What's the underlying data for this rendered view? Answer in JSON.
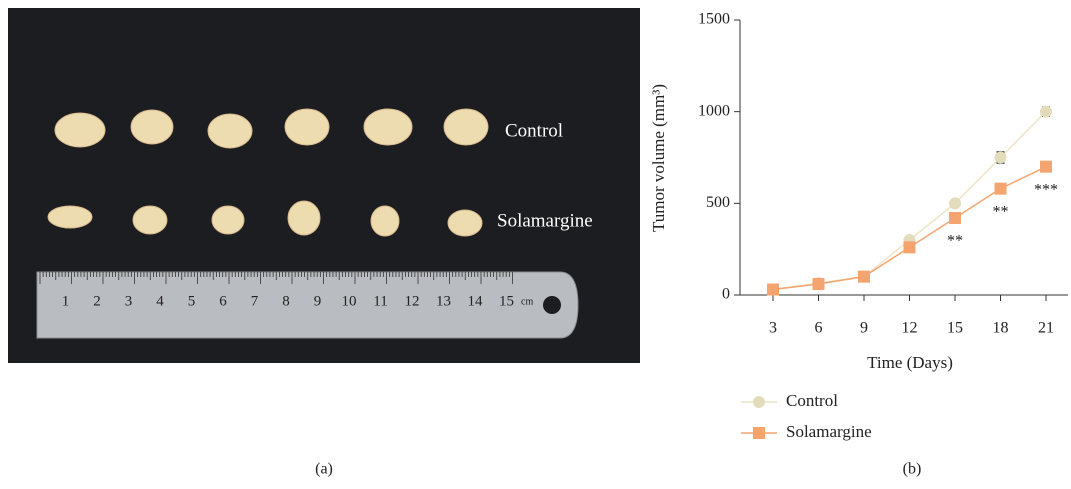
{
  "photo": {
    "labels": [
      "Control",
      "Solamargine"
    ],
    "ruler": {
      "labels": [
        "1",
        "2",
        "3",
        "4",
        "5",
        "6",
        "7",
        "8",
        "9",
        "10",
        "11",
        "12",
        "13",
        "14",
        "15"
      ],
      "unit": "cm"
    },
    "caption": "(a)"
  },
  "chart_data": {
    "type": "line",
    "caption": "(b)",
    "x_label": "Time (Days)",
    "y_label": "Tumor volume (mm³)",
    "categories": [
      "3",
      "6",
      "9",
      "12",
      "15",
      "18",
      "21"
    ],
    "ylim": [
      0,
      1500
    ],
    "yticks": [
      0,
      500,
      1000,
      1500
    ],
    "grid": false,
    "series": [
      {
        "name": "Control",
        "color": "#e3dcbc",
        "line_color": "#ece5c6",
        "marker": "circle",
        "values": [
          30,
          65,
          100,
          300,
          500,
          750,
          1000
        ],
        "errors": [
          5,
          5,
          5,
          10,
          12,
          30,
          25
        ]
      },
      {
        "name": "Solamargine",
        "color": "#f4a46e",
        "line_color": "#f4a46e",
        "marker": "square",
        "values": [
          30,
          60,
          100,
          260,
          420,
          580,
          700
        ],
        "errors": [
          5,
          5,
          5,
          10,
          12,
          15,
          15
        ],
        "significance": [
          null,
          null,
          null,
          null,
          "**",
          "**",
          "***"
        ]
      }
    ]
  }
}
